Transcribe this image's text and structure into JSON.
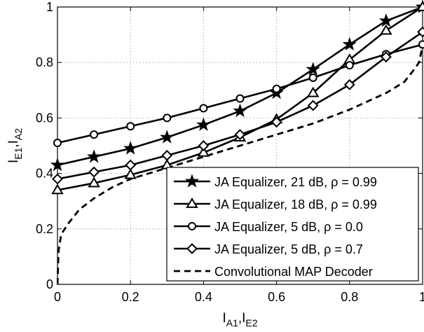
{
  "chart_data": {
    "type": "line",
    "title": "",
    "xlabel": "I",
    "xlabel_subscripts": [
      "A1",
      "E2"
    ],
    "ylabel": "I",
    "ylabel_subscripts": [
      "E1",
      "A2"
    ],
    "xlim": [
      0,
      1
    ],
    "ylim": [
      0,
      1
    ],
    "xticks": [
      0,
      0.2,
      0.4,
      0.6,
      0.8,
      1
    ],
    "yticks": [
      0,
      0.2,
      0.4,
      0.6,
      0.8,
      1
    ],
    "xtick_labels": [
      "0",
      "0.2",
      "0.4",
      "0.6",
      "0.8",
      "1"
    ],
    "ytick_labels": [
      "0",
      "0.2",
      "0.4",
      "0.6",
      "0.8",
      "1"
    ],
    "grid": true,
    "legend_position": "bottom-right",
    "series": [
      {
        "name": "JA Equalizer, 21 dB, ρ = 0.99",
        "marker": "star",
        "line": "solid",
        "x": [
          0,
          0.1,
          0.2,
          0.3,
          0.4,
          0.5,
          0.6,
          0.7,
          0.8,
          0.9,
          1.0
        ],
        "y": [
          0.43,
          0.46,
          0.49,
          0.53,
          0.575,
          0.625,
          0.69,
          0.775,
          0.865,
          0.95,
          1.0
        ]
      },
      {
        "name": "JA Equalizer, 18 dB, ρ = 0.99",
        "marker": "triangle",
        "line": "solid",
        "x": [
          0,
          0.1,
          0.2,
          0.3,
          0.4,
          0.5,
          0.6,
          0.7,
          0.8,
          0.9,
          1.0
        ],
        "y": [
          0.34,
          0.365,
          0.395,
          0.43,
          0.475,
          0.53,
          0.595,
          0.69,
          0.81,
          0.915,
          1.0
        ]
      },
      {
        "name": "JA Equalizer, 5 dB, ρ = 0.0",
        "marker": "circle",
        "line": "solid",
        "x": [
          0,
          0.1,
          0.2,
          0.3,
          0.4,
          0.5,
          0.6,
          0.7,
          0.8,
          0.9,
          1.0
        ],
        "y": [
          0.51,
          0.54,
          0.57,
          0.6,
          0.635,
          0.67,
          0.705,
          0.745,
          0.79,
          0.83,
          0.865
        ]
      },
      {
        "name": "JA Equalizer, 5 dB, ρ = 0.7",
        "marker": "diamond",
        "line": "solid",
        "x": [
          0,
          0.1,
          0.2,
          0.3,
          0.4,
          0.5,
          0.6,
          0.7,
          0.8,
          0.9,
          1.0
        ],
        "y": [
          0.38,
          0.405,
          0.43,
          0.465,
          0.5,
          0.54,
          0.585,
          0.645,
          0.72,
          0.82,
          0.91
        ]
      },
      {
        "name": "Convolutional MAP Decoder",
        "marker": "none",
        "line": "dashed",
        "x": [
          0,
          0.003,
          0.01,
          0.03,
          0.06,
          0.1,
          0.15,
          0.2,
          0.3,
          0.4,
          0.5,
          0.6,
          0.7,
          0.8,
          0.9,
          0.95,
          0.98,
          0.99,
          1.0
        ],
        "y": [
          0.0,
          0.12,
          0.18,
          0.22,
          0.27,
          0.31,
          0.35,
          0.38,
          0.42,
          0.46,
          0.5,
          0.54,
          0.58,
          0.63,
          0.69,
          0.73,
          0.78,
          0.8,
          0.86
        ]
      }
    ]
  }
}
